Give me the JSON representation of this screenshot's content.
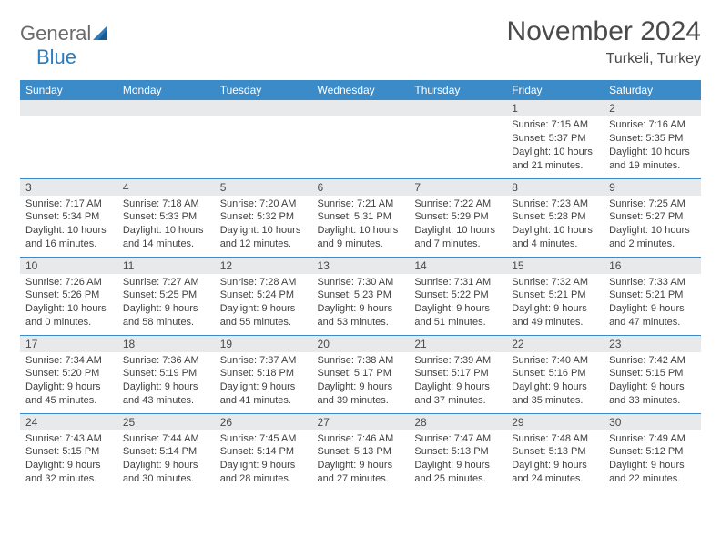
{
  "logo": {
    "text_gray": "General",
    "text_blue": "Blue"
  },
  "title": "November 2024",
  "location": "Turkeli, Turkey",
  "header_bg": "#3b8bc9",
  "daynum_bg": "#e7e9eb",
  "border_color": "#3b8bc9",
  "days_of_week": [
    "Sunday",
    "Monday",
    "Tuesday",
    "Wednesday",
    "Thursday",
    "Friday",
    "Saturday"
  ],
  "weeks": [
    [
      null,
      null,
      null,
      null,
      null,
      {
        "n": "1",
        "sunrise": "7:15 AM",
        "sunset": "5:37 PM",
        "daylight": "10 hours and 21 minutes."
      },
      {
        "n": "2",
        "sunrise": "7:16 AM",
        "sunset": "5:35 PM",
        "daylight": "10 hours and 19 minutes."
      }
    ],
    [
      {
        "n": "3",
        "sunrise": "7:17 AM",
        "sunset": "5:34 PM",
        "daylight": "10 hours and 16 minutes."
      },
      {
        "n": "4",
        "sunrise": "7:18 AM",
        "sunset": "5:33 PM",
        "daylight": "10 hours and 14 minutes."
      },
      {
        "n": "5",
        "sunrise": "7:20 AM",
        "sunset": "5:32 PM",
        "daylight": "10 hours and 12 minutes."
      },
      {
        "n": "6",
        "sunrise": "7:21 AM",
        "sunset": "5:31 PM",
        "daylight": "10 hours and 9 minutes."
      },
      {
        "n": "7",
        "sunrise": "7:22 AM",
        "sunset": "5:29 PM",
        "daylight": "10 hours and 7 minutes."
      },
      {
        "n": "8",
        "sunrise": "7:23 AM",
        "sunset": "5:28 PM",
        "daylight": "10 hours and 4 minutes."
      },
      {
        "n": "9",
        "sunrise": "7:25 AM",
        "sunset": "5:27 PM",
        "daylight": "10 hours and 2 minutes."
      }
    ],
    [
      {
        "n": "10",
        "sunrise": "7:26 AM",
        "sunset": "5:26 PM",
        "daylight": "10 hours and 0 minutes."
      },
      {
        "n": "11",
        "sunrise": "7:27 AM",
        "sunset": "5:25 PM",
        "daylight": "9 hours and 58 minutes."
      },
      {
        "n": "12",
        "sunrise": "7:28 AM",
        "sunset": "5:24 PM",
        "daylight": "9 hours and 55 minutes."
      },
      {
        "n": "13",
        "sunrise": "7:30 AM",
        "sunset": "5:23 PM",
        "daylight": "9 hours and 53 minutes."
      },
      {
        "n": "14",
        "sunrise": "7:31 AM",
        "sunset": "5:22 PM",
        "daylight": "9 hours and 51 minutes."
      },
      {
        "n": "15",
        "sunrise": "7:32 AM",
        "sunset": "5:21 PM",
        "daylight": "9 hours and 49 minutes."
      },
      {
        "n": "16",
        "sunrise": "7:33 AM",
        "sunset": "5:21 PM",
        "daylight": "9 hours and 47 minutes."
      }
    ],
    [
      {
        "n": "17",
        "sunrise": "7:34 AM",
        "sunset": "5:20 PM",
        "daylight": "9 hours and 45 minutes."
      },
      {
        "n": "18",
        "sunrise": "7:36 AM",
        "sunset": "5:19 PM",
        "daylight": "9 hours and 43 minutes."
      },
      {
        "n": "19",
        "sunrise": "7:37 AM",
        "sunset": "5:18 PM",
        "daylight": "9 hours and 41 minutes."
      },
      {
        "n": "20",
        "sunrise": "7:38 AM",
        "sunset": "5:17 PM",
        "daylight": "9 hours and 39 minutes."
      },
      {
        "n": "21",
        "sunrise": "7:39 AM",
        "sunset": "5:17 PM",
        "daylight": "9 hours and 37 minutes."
      },
      {
        "n": "22",
        "sunrise": "7:40 AM",
        "sunset": "5:16 PM",
        "daylight": "9 hours and 35 minutes."
      },
      {
        "n": "23",
        "sunrise": "7:42 AM",
        "sunset": "5:15 PM",
        "daylight": "9 hours and 33 minutes."
      }
    ],
    [
      {
        "n": "24",
        "sunrise": "7:43 AM",
        "sunset": "5:15 PM",
        "daylight": "9 hours and 32 minutes."
      },
      {
        "n": "25",
        "sunrise": "7:44 AM",
        "sunset": "5:14 PM",
        "daylight": "9 hours and 30 minutes."
      },
      {
        "n": "26",
        "sunrise": "7:45 AM",
        "sunset": "5:14 PM",
        "daylight": "9 hours and 28 minutes."
      },
      {
        "n": "27",
        "sunrise": "7:46 AM",
        "sunset": "5:13 PM",
        "daylight": "9 hours and 27 minutes."
      },
      {
        "n": "28",
        "sunrise": "7:47 AM",
        "sunset": "5:13 PM",
        "daylight": "9 hours and 25 minutes."
      },
      {
        "n": "29",
        "sunrise": "7:48 AM",
        "sunset": "5:13 PM",
        "daylight": "9 hours and 24 minutes."
      },
      {
        "n": "30",
        "sunrise": "7:49 AM",
        "sunset": "5:12 PM",
        "daylight": "9 hours and 22 minutes."
      }
    ]
  ]
}
